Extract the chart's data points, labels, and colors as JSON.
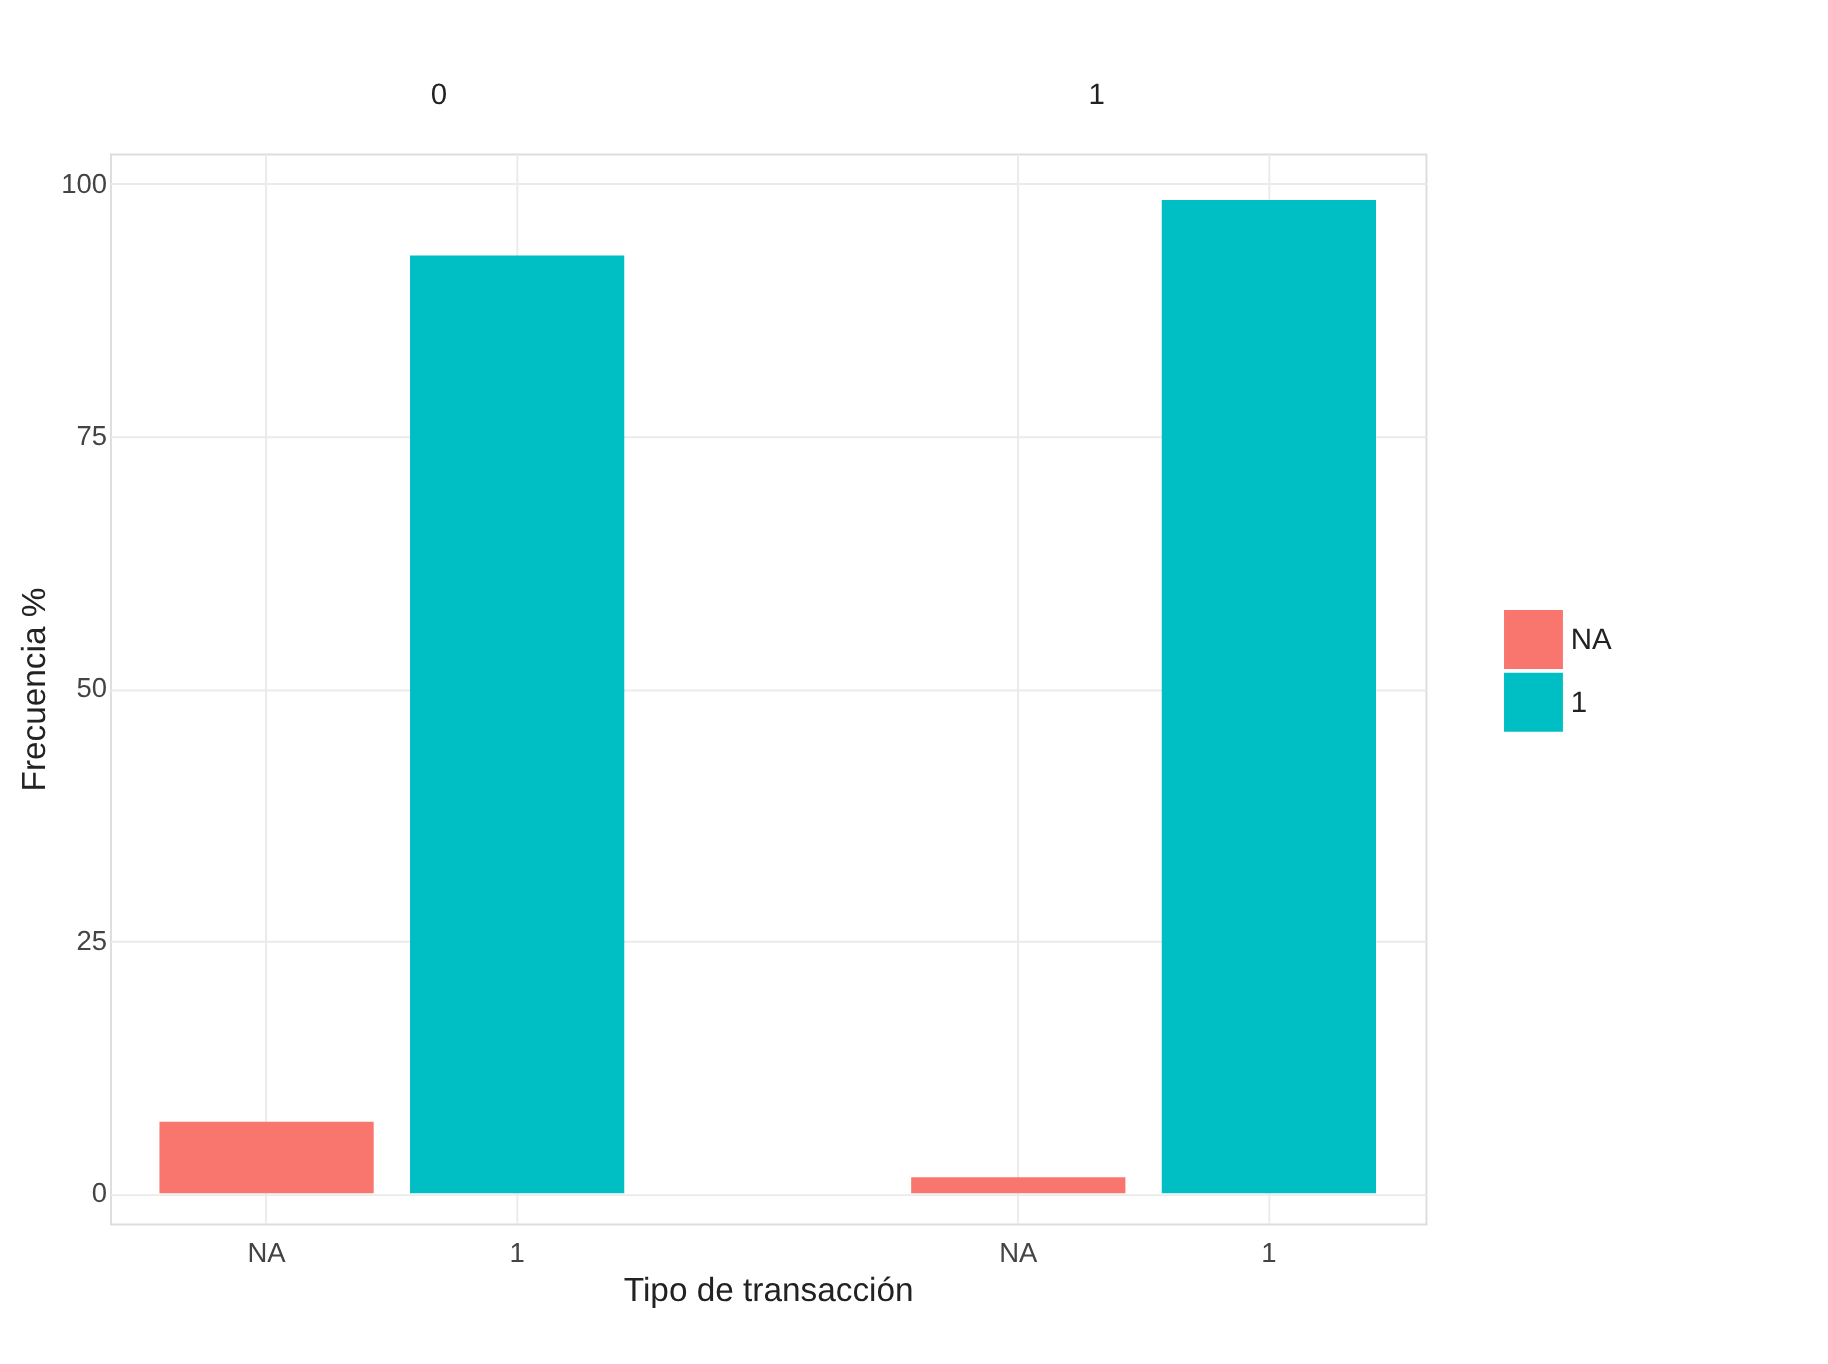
{
  "chart_data": {
    "type": "bar",
    "xlabel": "Tipo de transacción",
    "ylabel": "Frecuencia %",
    "categories": [
      "NA",
      "1",
      "NA",
      "1"
    ],
    "series": [
      {
        "name": "NA",
        "color": "#f8766d",
        "values": [
          7.1,
          null,
          1.6,
          null
        ]
      },
      {
        "name": "1",
        "color": "#00bfc4",
        "values": [
          null,
          92.9,
          null,
          98.4
        ]
      }
    ],
    "annotations": [
      "0",
      "1"
    ],
    "ylim": [
      -3,
      103
    ],
    "yticks": [
      0,
      25,
      50,
      75,
      100
    ],
    "grid": true,
    "legend": "right"
  }
}
